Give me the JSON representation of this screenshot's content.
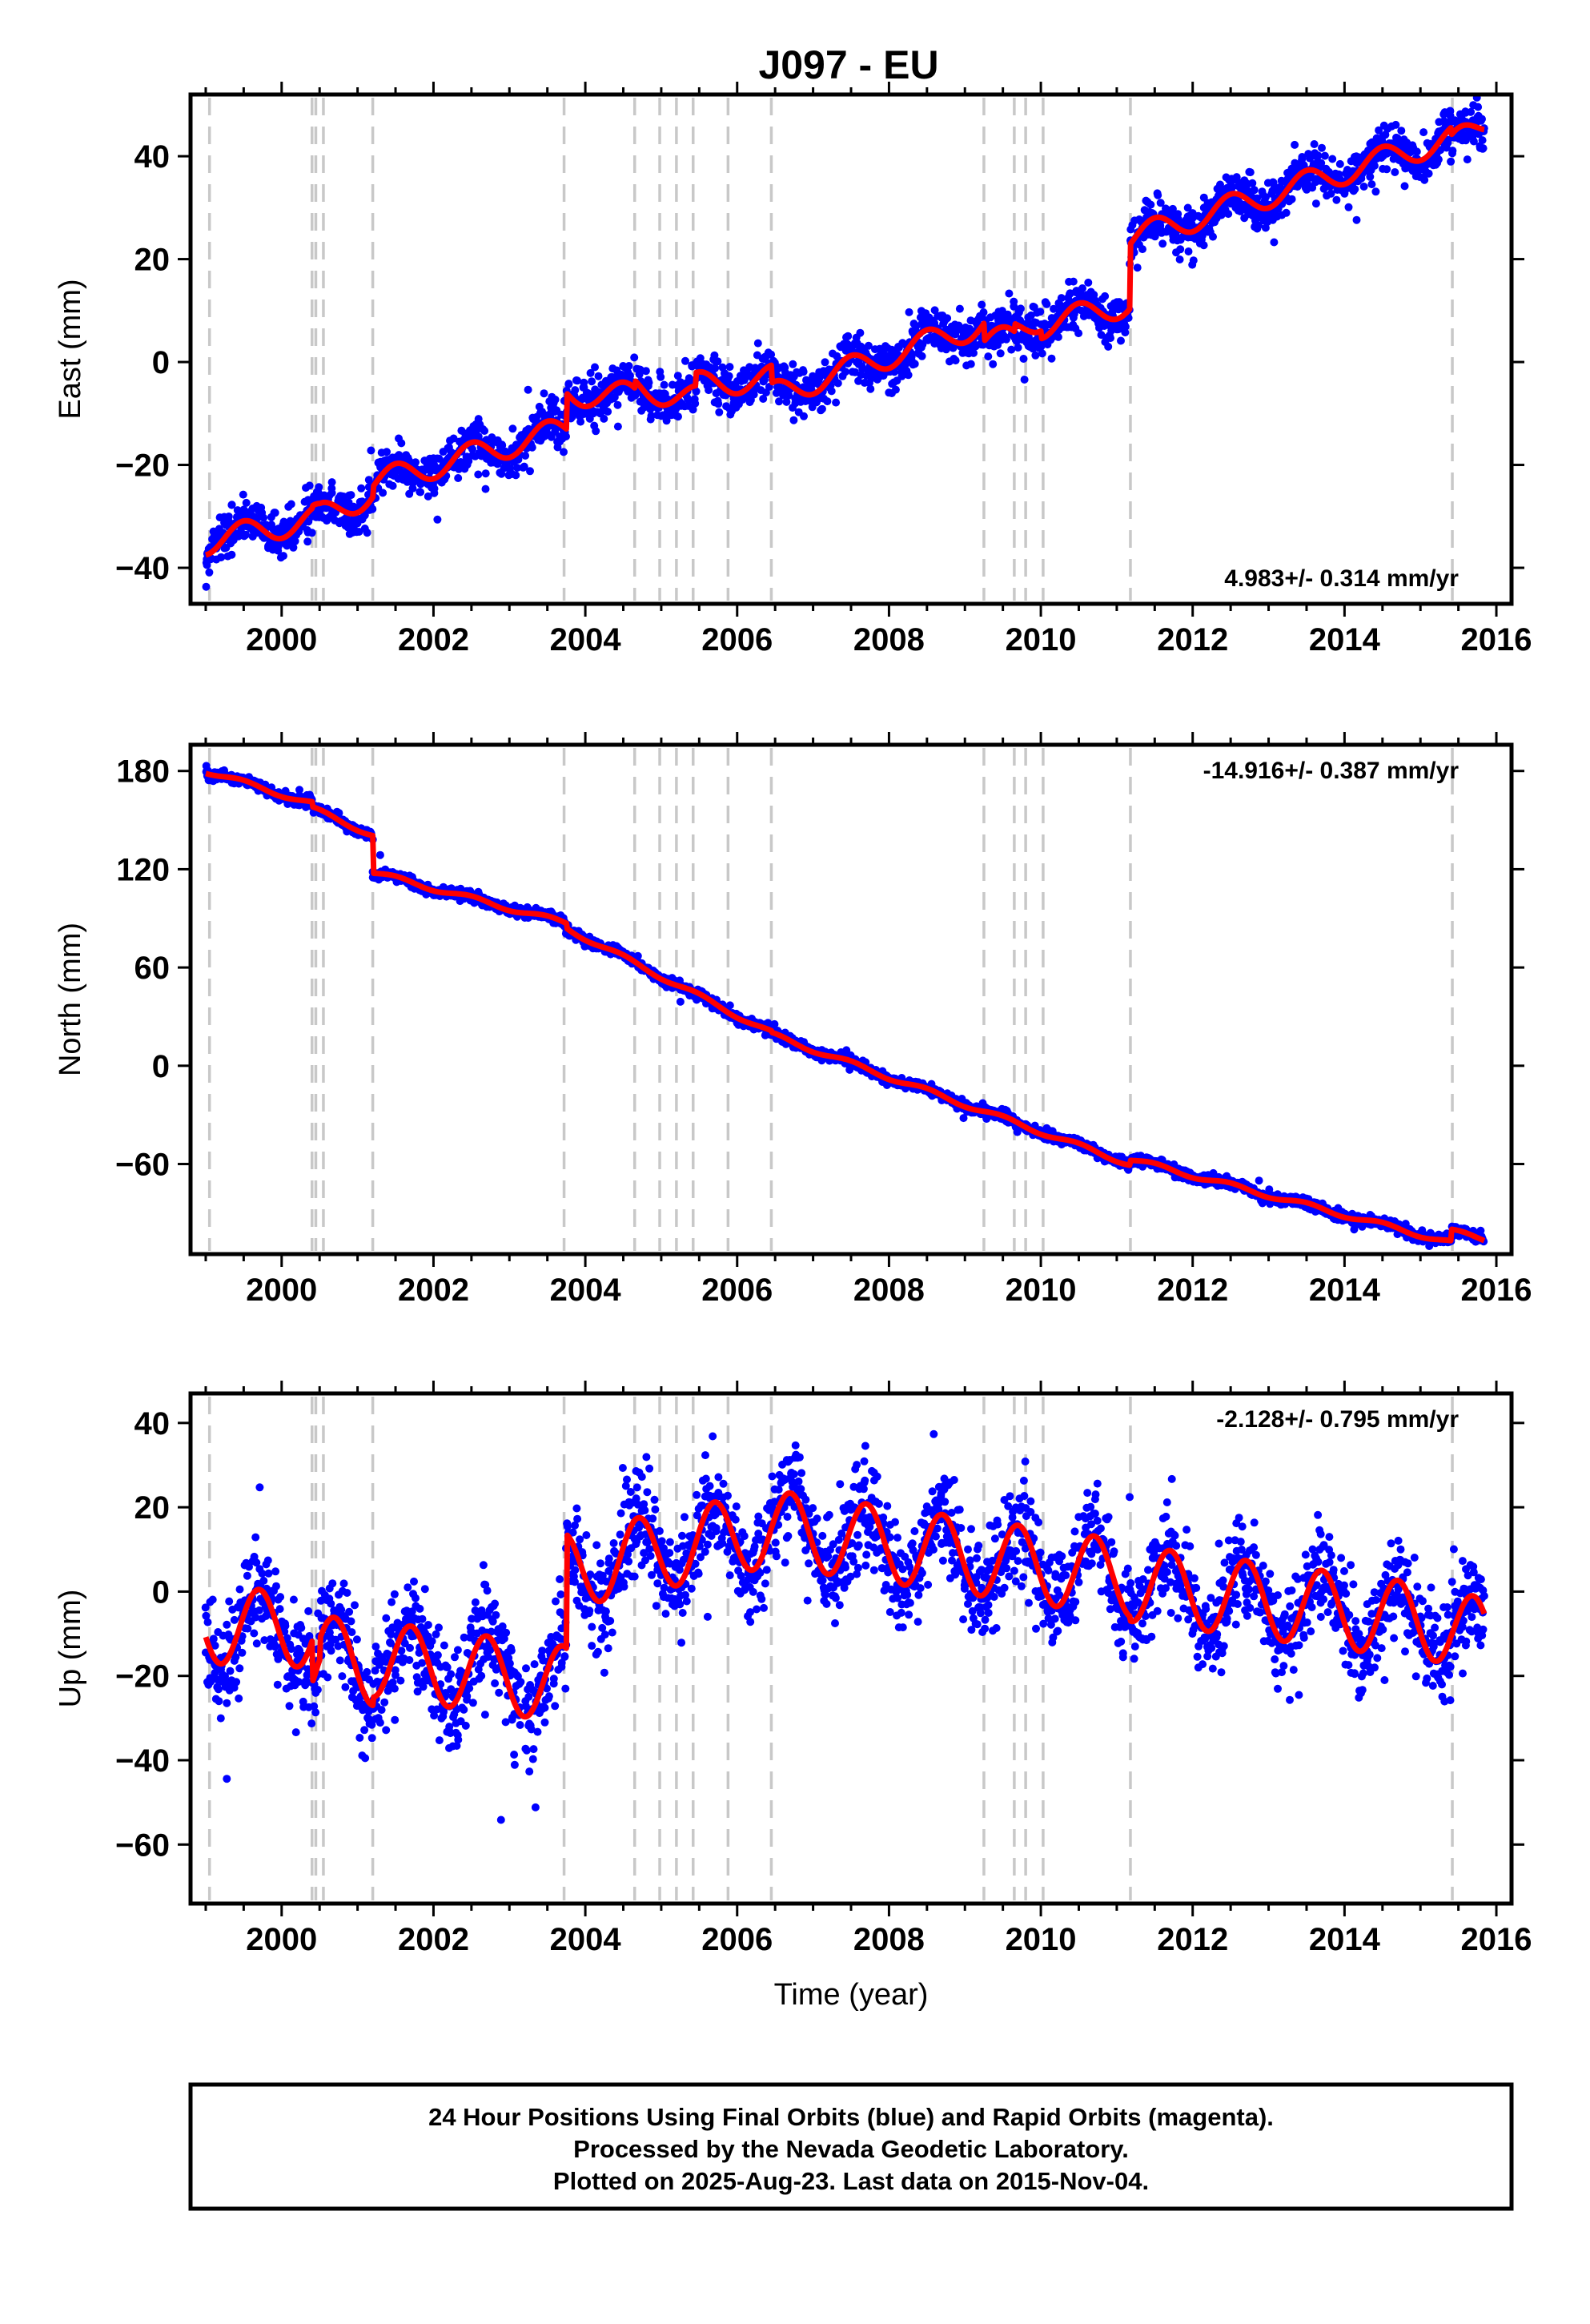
{
  "title": "J097 - EU",
  "colors": {
    "data": "#0000ff",
    "model": "#ff0000",
    "breaks": "#c8c8c8",
    "frame": "#000000"
  },
  "footer": {
    "line1": "24 Hour Positions Using Final Orbits (blue) and Rapid Orbits (magenta).",
    "line2": "Processed by the Nevada Geodetic Laboratory.",
    "line3": "Plotted on 2025-Aug-23. Last data on 2015-Nov-04."
  },
  "chart_data": [
    {
      "type": "scatter",
      "component": "east",
      "ylabel": "East (mm)",
      "xlabel": "",
      "xlim": [
        1998.8,
        2016.2
      ],
      "ylim": [
        -47,
        52
      ],
      "xticks": [
        2000,
        2002,
        2004,
        2006,
        2008,
        2010,
        2012,
        2014,
        2016
      ],
      "yticks": [
        -40,
        -20,
        0,
        20,
        40
      ],
      "rate_label": "4.983+/- 0.314 mm/yr",
      "rate_label_position": "bottom-right",
      "data_start": 1999.0,
      "data_end": 2015.84,
      "scatter_sd": 2.2,
      "annual_amplitude": 2.5,
      "annual_phase": 0.25,
      "model_segments": [
        {
          "x": [
            1999.0,
            2000.4
          ],
          "y": [
            -35.0,
            -30.5
          ]
        },
        {
          "x": [
            2000.4,
            2000.5
          ],
          "y": [
            -30.0,
            -30.0
          ]
        },
        {
          "x": [
            2000.5,
            2001.2
          ],
          "y": [
            -30.0,
            -25.5
          ]
        },
        {
          "x": [
            2001.2,
            2003.75
          ],
          "y": [
            -23.5,
            -13.0
          ]
        },
        {
          "x": [
            2003.75,
            2004.65
          ],
          "y": [
            -6.0,
            -6.5
          ]
        },
        {
          "x": [
            2004.65,
            2005.45
          ],
          "y": [
            -5.0,
            -7.0
          ]
        },
        {
          "x": [
            2005.45,
            2006.45
          ],
          "y": [
            -4.5,
            -3.0
          ]
        },
        {
          "x": [
            2006.45,
            2009.25
          ],
          "y": [
            -6.5,
            7.5
          ]
        },
        {
          "x": [
            2009.25,
            2009.65
          ],
          "y": [
            4.0,
            4.5
          ]
        },
        {
          "x": [
            2009.65,
            2010.0
          ],
          "y": [
            6.0,
            8.5
          ]
        },
        {
          "x": [
            2010.0,
            2011.17
          ],
          "y": [
            7.0,
            11.5
          ]
        },
        {
          "x": [
            2011.17,
            2015.4
          ],
          "y": [
            24.0,
            43.5
          ]
        },
        {
          "x": [
            2015.4,
            2015.84
          ],
          "y": [
            42.0,
            46.5
          ]
        }
      ]
    },
    {
      "type": "scatter",
      "component": "north",
      "ylabel": "North (mm)",
      "xlabel": "",
      "xlim": [
        1998.8,
        2016.2
      ],
      "ylim": [
        -115,
        196
      ],
      "xticks": [
        2000,
        2002,
        2004,
        2006,
        2008,
        2010,
        2012,
        2014,
        2016
      ],
      "yticks": [
        -60,
        0,
        60,
        120,
        180
      ],
      "rate_label": "-14.916+/- 0.387 mm/yr",
      "rate_label_position": "top-right",
      "data_start": 1999.0,
      "data_end": 2015.84,
      "scatter_sd": 1.6,
      "annual_amplitude": 1.5,
      "annual_phase": 0.25,
      "model_segments": [
        {
          "x": [
            1999.0,
            2000.4
          ],
          "y": [
            180.0,
            160.0
          ]
        },
        {
          "x": [
            2000.4,
            2001.2
          ],
          "y": [
            157.0,
            141.0
          ]
        },
        {
          "x": [
            2001.2,
            2003.75
          ],
          "y": [
            118.0,
            87.0
          ]
        },
        {
          "x": [
            2003.75,
            2006.45
          ],
          "y": [
            84.0,
            20.0
          ]
        },
        {
          "x": [
            2006.45,
            2011.17
          ],
          "y": [
            19.0,
            -60.0
          ]
        },
        {
          "x": [
            2011.17,
            2015.4
          ],
          "y": [
            -57.0,
            -108.0
          ]
        },
        {
          "x": [
            2015.4,
            2015.84
          ],
          "y": [
            -101.0,
            -106.0
          ]
        }
      ]
    },
    {
      "type": "scatter",
      "component": "up",
      "ylabel": "Up (mm)",
      "xlabel": "Time (year)",
      "xlim": [
        1998.8,
        2016.2
      ],
      "ylim": [
        -74,
        47
      ],
      "xticks": [
        2000,
        2002,
        2004,
        2006,
        2008,
        2010,
        2012,
        2014,
        2016
      ],
      "yticks": [
        -60,
        -40,
        -20,
        0,
        20,
        40
      ],
      "rate_label": "-2.128+/- 0.795 mm/yr",
      "rate_label_position": "top-right",
      "data_start": 1999.0,
      "data_end": 2015.84,
      "data_gap": [
        2003.15,
        2003.2
      ],
      "scatter_sd": 6.0,
      "annual_amplitude": 9.0,
      "annual_phase": 0.45,
      "model_segments": [
        {
          "x": [
            1999.0,
            2000.4
          ],
          "y": [
            -8.0,
            -9.0
          ]
        },
        {
          "x": [
            2000.4,
            2000.5
          ],
          "y": [
            -19.0,
            -19.0
          ]
        },
        {
          "x": [
            2000.5,
            2001.2
          ],
          "y": [
            -14.0,
            -18.0
          ]
        },
        {
          "x": [
            2001.2,
            2003.75
          ],
          "y": [
            -16.0,
            -22.0
          ]
        },
        {
          "x": [
            2003.75,
            2006.45
          ],
          "y": [
            5.0,
            15.0
          ]
        },
        {
          "x": [
            2006.45,
            2011.17
          ],
          "y": [
            15.0,
            3.0
          ]
        },
        {
          "x": [
            2011.17,
            2015.4
          ],
          "y": [
            2.0,
            -8.0
          ]
        },
        {
          "x": [
            2015.4,
            2015.84
          ],
          "y": [
            -8.0,
            -11.0
          ]
        }
      ]
    }
  ],
  "step_epochs": [
    1999.05,
    2000.4,
    2000.45,
    2000.55,
    2001.2,
    2003.72,
    2004.65,
    2004.98,
    2005.2,
    2005.42,
    2005.88,
    2006.45,
    2009.25,
    2009.65,
    2009.8,
    2010.03,
    2011.18,
    2015.42
  ]
}
